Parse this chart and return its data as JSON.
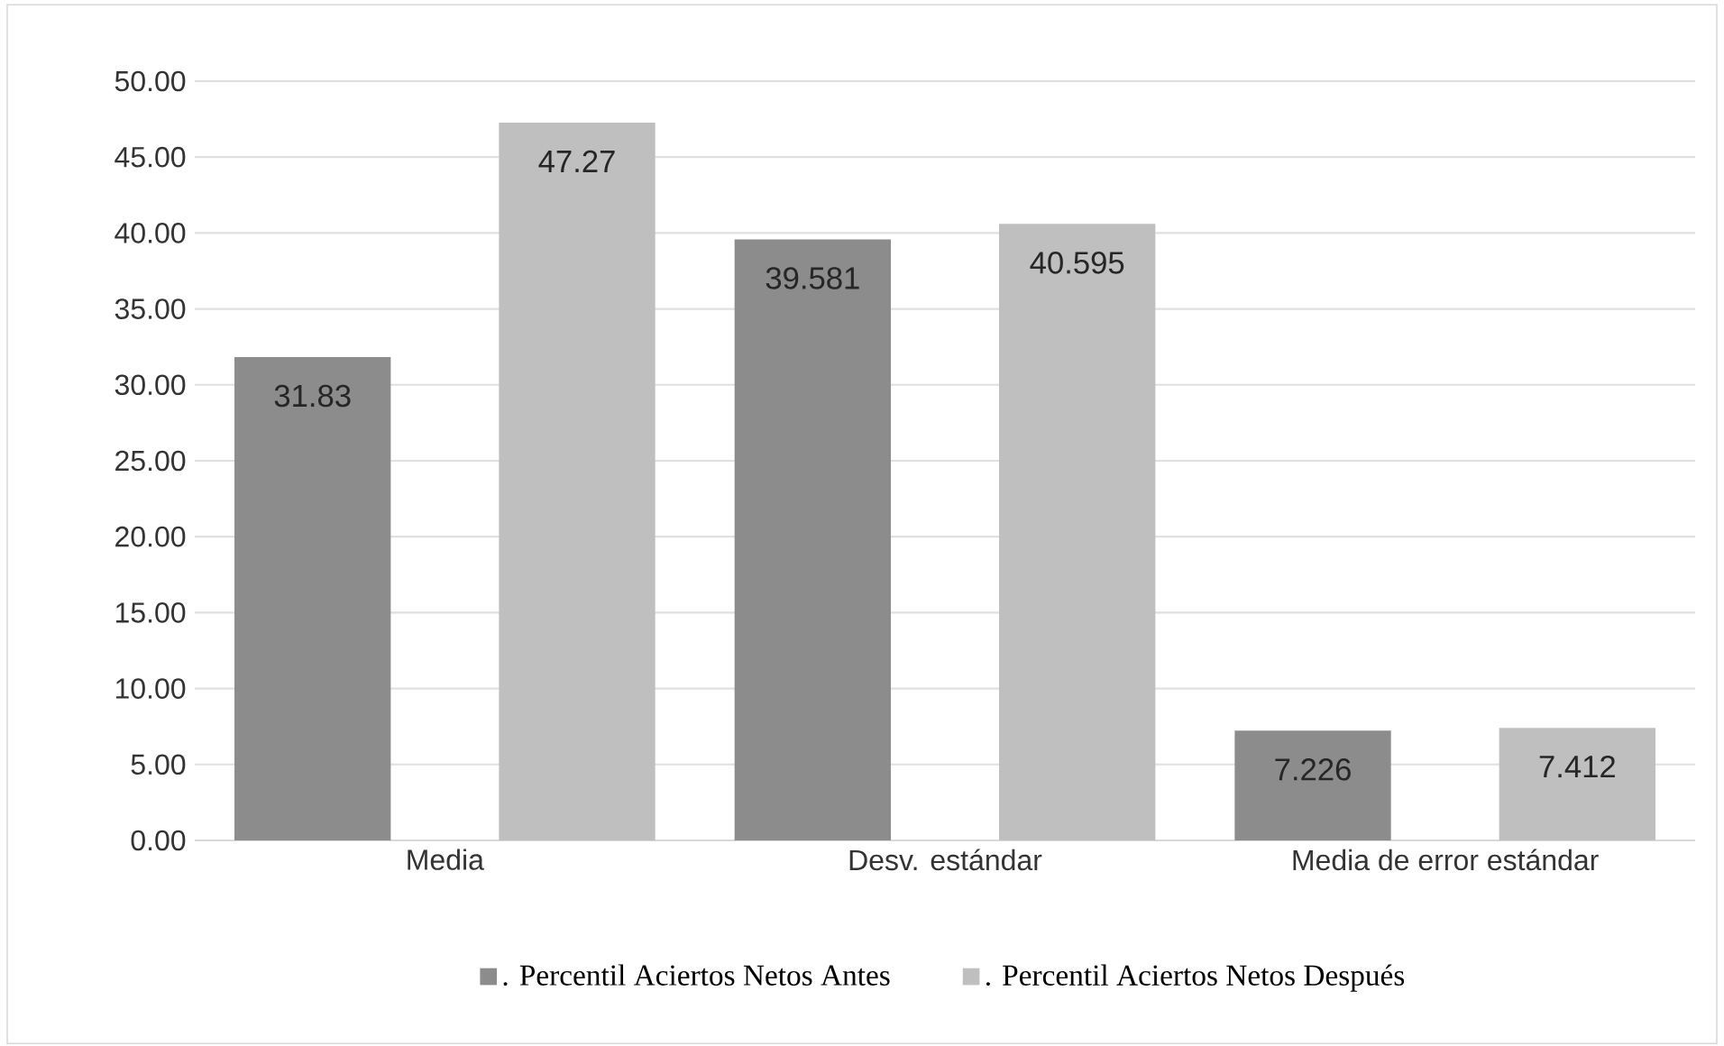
{
  "chart_data": {
    "type": "bar",
    "categories": [
      "Media",
      "Desv. estándar",
      "Media de error estándar"
    ],
    "series": [
      {
        "name": ". Percentil Aciertos Netos Antes",
        "color": "#8c8c8c",
        "values": [
          31.83,
          39.581,
          7.226
        ]
      },
      {
        "name": ". Percentil Aciertos Netos Después",
        "color": "#bfbfbf",
        "values": [
          47.27,
          40.595,
          7.412
        ]
      }
    ],
    "ylim": [
      0,
      50
    ],
    "yticks": [
      {
        "value": 0,
        "label": "0.00"
      },
      {
        "value": 5,
        "label": "5.00"
      },
      {
        "value": 10,
        "label": "10.00"
      },
      {
        "value": 15,
        "label": "15.00"
      },
      {
        "value": 20,
        "label": "20.00"
      },
      {
        "value": 25,
        "label": "25.00"
      },
      {
        "value": 30,
        "label": "30.00"
      },
      {
        "value": 35,
        "label": "35.00"
      },
      {
        "value": 40,
        "label": "40.00"
      },
      {
        "value": 45,
        "label": "45.00"
      },
      {
        "value": 50,
        "label": "50.00"
      }
    ],
    "grid": "y",
    "legend": "bottom",
    "data_labels": true
  }
}
